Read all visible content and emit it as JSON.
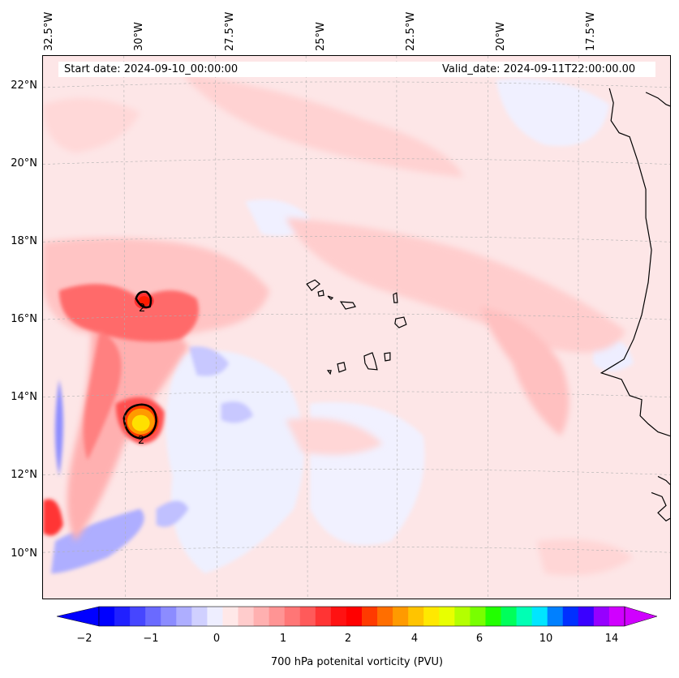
{
  "header": {
    "start_date": "Start date: 2024-09-10_00:00:00",
    "valid_date": "Valid_date: 2024-09-11T22:00:00.00"
  },
  "axes": {
    "lon_labels": [
      "32.5°W",
      "30°W",
      "27.5°W",
      "25°W",
      "22.5°W",
      "20°W",
      "17.5°W"
    ],
    "lat_labels": [
      "22°N",
      "20°N",
      "18°N",
      "16°N",
      "14°N",
      "12°N",
      "10°N"
    ]
  },
  "contours": {
    "label_a": "2",
    "label_b": "2"
  },
  "colorbar": {
    "ticks": [
      "−2",
      "−1",
      "0",
      "1",
      "2",
      "4",
      "6",
      "10",
      "14"
    ],
    "title": "700 hPa potenital vorticity (PVU)",
    "colors": [
      "#0000ff",
      "#2020ff",
      "#4646ff",
      "#6a6aff",
      "#8c8cff",
      "#aeaeff",
      "#d0d0ff",
      "#eeeeff",
      "#ffe8e8",
      "#ffcccc",
      "#ffb0b0",
      "#ff9494",
      "#ff7676",
      "#ff5a5a",
      "#ff3434",
      "#ff1212",
      "#ff0000",
      "#ff3a00",
      "#ff6e00",
      "#ff9a00",
      "#ffc400",
      "#ffe800",
      "#e8ff00",
      "#b4ff00",
      "#78ff00",
      "#22ff00",
      "#00ff5a",
      "#00ffb4",
      "#00e6ff",
      "#0080ff",
      "#0030ff",
      "#3a00ff",
      "#9600ff",
      "#d000ff"
    ]
  },
  "icons": {
    "colorbar_left_arrow": "triangle-left",
    "colorbar_right_arrow": "triangle-right"
  }
}
